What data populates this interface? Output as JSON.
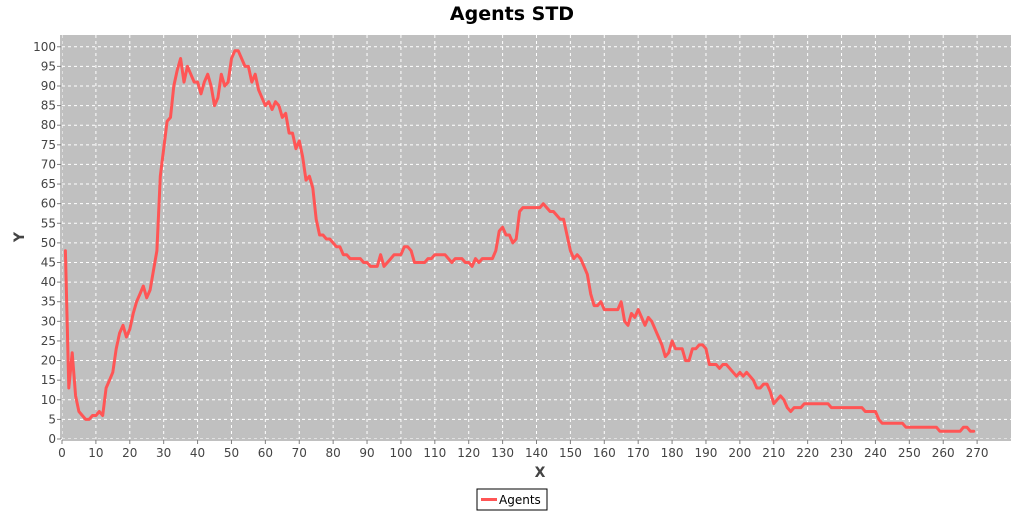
{
  "chart_data": {
    "type": "line",
    "title": "Agents STD",
    "xlabel": "X",
    "ylabel": "Y",
    "xlim": [
      0,
      280
    ],
    "ylim": [
      0,
      103
    ],
    "x_ticks": [
      0,
      10,
      20,
      30,
      40,
      50,
      60,
      70,
      80,
      90,
      100,
      110,
      120,
      130,
      140,
      150,
      160,
      170,
      180,
      190,
      200,
      210,
      220,
      230,
      240,
      250,
      260,
      270
    ],
    "y_ticks": [
      0,
      5,
      10,
      15,
      20,
      25,
      30,
      35,
      40,
      45,
      50,
      55,
      60,
      65,
      70,
      75,
      80,
      85,
      90,
      95,
      100
    ],
    "grid": true,
    "legend_position": "bottom-center",
    "colors": {
      "plot_background": "#c0c0c0",
      "grid": "#ffffff",
      "series": "#ff5555",
      "page_background": "#ffffff"
    },
    "series": [
      {
        "name": "Agents",
        "color": "#ff5555",
        "points": [
          [
            1,
            48
          ],
          [
            2,
            13
          ],
          [
            3,
            22
          ],
          [
            4,
            11
          ],
          [
            5,
            7
          ],
          [
            6,
            6
          ],
          [
            7,
            5
          ],
          [
            8,
            5
          ],
          [
            9,
            6
          ],
          [
            10,
            6
          ],
          [
            11,
            7
          ],
          [
            12,
            6
          ],
          [
            13,
            13
          ],
          [
            14,
            15
          ],
          [
            15,
            17
          ],
          [
            16,
            23
          ],
          [
            17,
            27
          ],
          [
            18,
            29
          ],
          [
            19,
            26
          ],
          [
            20,
            28
          ],
          [
            21,
            32
          ],
          [
            22,
            35
          ],
          [
            23,
            37
          ],
          [
            24,
            39
          ],
          [
            25,
            36
          ],
          [
            26,
            38
          ],
          [
            27,
            43
          ],
          [
            28,
            48
          ],
          [
            29,
            67
          ],
          [
            30,
            74
          ],
          [
            31,
            81
          ],
          [
            32,
            82
          ],
          [
            33,
            90
          ],
          [
            34,
            94
          ],
          [
            35,
            97
          ],
          [
            36,
            91
          ],
          [
            37,
            95
          ],
          [
            38,
            93
          ],
          [
            39,
            91
          ],
          [
            40,
            91
          ],
          [
            41,
            88
          ],
          [
            42,
            91
          ],
          [
            43,
            93
          ],
          [
            44,
            90
          ],
          [
            45,
            85
          ],
          [
            46,
            87
          ],
          [
            47,
            93
          ],
          [
            48,
            90
          ],
          [
            49,
            91
          ],
          [
            50,
            97
          ],
          [
            51,
            99
          ],
          [
            52,
            99
          ],
          [
            53,
            97
          ],
          [
            54,
            95
          ],
          [
            55,
            95
          ],
          [
            56,
            91
          ],
          [
            57,
            93
          ],
          [
            58,
            89
          ],
          [
            59,
            87
          ],
          [
            60,
            85
          ],
          [
            61,
            86
          ],
          [
            62,
            84
          ],
          [
            63,
            86
          ],
          [
            64,
            85
          ],
          [
            65,
            82
          ],
          [
            66,
            83
          ],
          [
            67,
            78
          ],
          [
            68,
            78
          ],
          [
            69,
            74
          ],
          [
            70,
            76
          ],
          [
            71,
            72
          ],
          [
            72,
            66
          ],
          [
            73,
            67
          ],
          [
            74,
            64
          ],
          [
            75,
            56
          ],
          [
            76,
            52
          ],
          [
            77,
            52
          ],
          [
            78,
            51
          ],
          [
            79,
            51
          ],
          [
            80,
            50
          ],
          [
            81,
            49
          ],
          [
            82,
            49
          ],
          [
            83,
            47
          ],
          [
            84,
            47
          ],
          [
            85,
            46
          ],
          [
            86,
            46
          ],
          [
            87,
            46
          ],
          [
            88,
            46
          ],
          [
            89,
            45
          ],
          [
            90,
            45
          ],
          [
            91,
            44
          ],
          [
            92,
            44
          ],
          [
            93,
            44
          ],
          [
            94,
            47
          ],
          [
            95,
            44
          ],
          [
            96,
            45
          ],
          [
            97,
            46
          ],
          [
            98,
            47
          ],
          [
            99,
            47
          ],
          [
            100,
            47
          ],
          [
            101,
            49
          ],
          [
            102,
            49
          ],
          [
            103,
            48
          ],
          [
            104,
            45
          ],
          [
            105,
            45
          ],
          [
            106,
            45
          ],
          [
            107,
            45
          ],
          [
            108,
            46
          ],
          [
            109,
            46
          ],
          [
            110,
            47
          ],
          [
            111,
            47
          ],
          [
            112,
            47
          ],
          [
            113,
            47
          ],
          [
            114,
            46
          ],
          [
            115,
            45
          ],
          [
            116,
            46
          ],
          [
            117,
            46
          ],
          [
            118,
            46
          ],
          [
            119,
            45
          ],
          [
            120,
            45
          ],
          [
            121,
            44
          ],
          [
            122,
            46
          ],
          [
            123,
            45
          ],
          [
            124,
            46
          ],
          [
            125,
            46
          ],
          [
            126,
            46
          ],
          [
            127,
            46
          ],
          [
            128,
            48
          ],
          [
            129,
            53
          ],
          [
            130,
            54
          ],
          [
            131,
            52
          ],
          [
            132,
            52
          ],
          [
            133,
            50
          ],
          [
            134,
            51
          ],
          [
            135,
            58
          ],
          [
            136,
            59
          ],
          [
            137,
            59
          ],
          [
            138,
            59
          ],
          [
            139,
            59
          ],
          [
            140,
            59
          ],
          [
            141,
            59
          ],
          [
            142,
            60
          ],
          [
            143,
            59
          ],
          [
            144,
            58
          ],
          [
            145,
            58
          ],
          [
            146,
            57
          ],
          [
            147,
            56
          ],
          [
            148,
            56
          ],
          [
            149,
            52
          ],
          [
            150,
            48
          ],
          [
            151,
            46
          ],
          [
            152,
            47
          ],
          [
            153,
            46
          ],
          [
            154,
            44
          ],
          [
            155,
            42
          ],
          [
            156,
            37
          ],
          [
            157,
            34
          ],
          [
            158,
            34
          ],
          [
            159,
            35
          ],
          [
            160,
            33
          ],
          [
            161,
            33
          ],
          [
            162,
            33
          ],
          [
            163,
            33
          ],
          [
            164,
            33
          ],
          [
            165,
            35
          ],
          [
            166,
            30
          ],
          [
            167,
            29
          ],
          [
            168,
            32
          ],
          [
            169,
            31
          ],
          [
            170,
            33
          ],
          [
            171,
            31
          ],
          [
            172,
            29
          ],
          [
            173,
            31
          ],
          [
            174,
            30
          ],
          [
            175,
            28
          ],
          [
            176,
            26
          ],
          [
            177,
            24
          ],
          [
            178,
            21
          ],
          [
            179,
            22
          ],
          [
            180,
            25
          ],
          [
            181,
            23
          ],
          [
            182,
            23
          ],
          [
            183,
            23
          ],
          [
            184,
            20
          ],
          [
            185,
            20
          ],
          [
            186,
            23
          ],
          [
            187,
            23
          ],
          [
            188,
            24
          ],
          [
            189,
            24
          ],
          [
            190,
            23
          ],
          [
            191,
            19
          ],
          [
            192,
            19
          ],
          [
            193,
            19
          ],
          [
            194,
            18
          ],
          [
            195,
            19
          ],
          [
            196,
            19
          ],
          [
            197,
            18
          ],
          [
            198,
            17
          ],
          [
            199,
            16
          ],
          [
            200,
            17
          ],
          [
            201,
            16
          ],
          [
            202,
            17
          ],
          [
            203,
            16
          ],
          [
            204,
            15
          ],
          [
            205,
            13
          ],
          [
            206,
            13
          ],
          [
            207,
            14
          ],
          [
            208,
            14
          ],
          [
            209,
            12
          ],
          [
            210,
            9
          ],
          [
            211,
            10
          ],
          [
            212,
            11
          ],
          [
            213,
            10
          ],
          [
            214,
            8
          ],
          [
            215,
            7
          ],
          [
            216,
            8
          ],
          [
            217,
            8
          ],
          [
            218,
            8
          ],
          [
            219,
            9
          ],
          [
            220,
            9
          ],
          [
            221,
            9
          ],
          [
            222,
            9
          ],
          [
            223,
            9
          ],
          [
            224,
            9
          ],
          [
            225,
            9
          ],
          [
            226,
            9
          ],
          [
            227,
            8
          ],
          [
            228,
            8
          ],
          [
            229,
            8
          ],
          [
            230,
            8
          ],
          [
            231,
            8
          ],
          [
            232,
            8
          ],
          [
            233,
            8
          ],
          [
            234,
            8
          ],
          [
            235,
            8
          ],
          [
            236,
            8
          ],
          [
            237,
            7
          ],
          [
            238,
            7
          ],
          [
            239,
            7
          ],
          [
            240,
            7
          ],
          [
            241,
            5
          ],
          [
            242,
            4
          ],
          [
            243,
            4
          ],
          [
            244,
            4
          ],
          [
            245,
            4
          ],
          [
            246,
            4
          ],
          [
            247,
            4
          ],
          [
            248,
            4
          ],
          [
            249,
            3
          ],
          [
            250,
            3
          ],
          [
            251,
            3
          ],
          [
            252,
            3
          ],
          [
            253,
            3
          ],
          [
            254,
            3
          ],
          [
            255,
            3
          ],
          [
            256,
            3
          ],
          [
            257,
            3
          ],
          [
            258,
            3
          ],
          [
            259,
            2
          ],
          [
            260,
            2
          ],
          [
            261,
            2
          ],
          [
            262,
            2
          ],
          [
            263,
            2
          ],
          [
            264,
            2
          ],
          [
            265,
            2
          ],
          [
            266,
            3
          ],
          [
            267,
            3
          ],
          [
            268,
            2
          ],
          [
            269,
            2
          ]
        ]
      }
    ]
  }
}
